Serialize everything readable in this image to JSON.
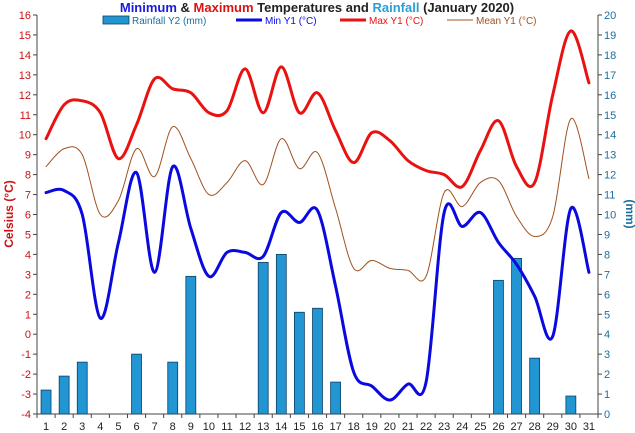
{
  "chart_data": {
    "type": "bar+line",
    "title_parts": [
      {
        "text": "Minimum",
        "color": "#1a1adc"
      },
      {
        "text": " & ",
        "color": "#222222"
      },
      {
        "text": "Maximum",
        "color": "#dd1111"
      },
      {
        "text": " Temperatures and ",
        "color": "#222222"
      },
      {
        "text": "Rainfall",
        "color": "#2a9fd6"
      },
      {
        "text": " (January 2020)",
        "color": "#222222"
      }
    ],
    "ylabel_left": "Celsius (°C)",
    "ylabel_right": "(mm)",
    "ylim_left": [
      -4,
      16
    ],
    "ylim_right": [
      0,
      20
    ],
    "x": [
      1,
      2,
      3,
      4,
      5,
      6,
      7,
      8,
      9,
      10,
      11,
      12,
      13,
      14,
      15,
      16,
      17,
      18,
      19,
      20,
      21,
      22,
      23,
      24,
      25,
      26,
      27,
      28,
      29,
      30,
      31
    ],
    "series": [
      {
        "name": "Rainfall Y2 (mm)",
        "kind": "bar",
        "axis": "right",
        "color": "#2196d3",
        "values": [
          1.2,
          1.9,
          2.6,
          0,
          0,
          3.0,
          0,
          2.6,
          6.9,
          0,
          0,
          0,
          7.6,
          8.0,
          5.1,
          5.3,
          1.6,
          0,
          0,
          0,
          0,
          0,
          0,
          0,
          0,
          6.7,
          7.8,
          2.8,
          0,
          0.9,
          0
        ]
      },
      {
        "name": "Min Y1 (°C)",
        "kind": "line",
        "axis": "left",
        "color": "#0a0ae0",
        "values": [
          7.1,
          7.2,
          6.0,
          0.8,
          4.6,
          8.1,
          3.1,
          8.4,
          5.3,
          2.9,
          4.1,
          4.1,
          3.9,
          6.1,
          5.6,
          6.2,
          2.4,
          -1.9,
          -2.6,
          -3.3,
          -2.5,
          -2.4,
          6.1,
          5.4,
          6.1,
          4.6,
          3.5,
          1.9,
          -0.1,
          6.3,
          3.1
        ]
      },
      {
        "name": "Max Y1 (°C)",
        "kind": "line",
        "axis": "left",
        "color": "#ea1111",
        "values": [
          9.8,
          11.5,
          11.7,
          11.1,
          8.8,
          10.5,
          12.8,
          12.3,
          12.1,
          11.1,
          11.2,
          13.3,
          11.1,
          13.4,
          11.1,
          12.1,
          10.2,
          8.6,
          10.1,
          9.7,
          8.7,
          8.2,
          8.0,
          7.4,
          9.2,
          10.7,
          8.4,
          7.6,
          12.0,
          15.2,
          12.6
        ]
      },
      {
        "name": "Mean Y1 (°C)",
        "kind": "line",
        "axis": "left",
        "color": "#a0501e",
        "values": [
          8.4,
          9.3,
          9.0,
          6.0,
          6.7,
          9.3,
          7.9,
          10.4,
          8.8,
          7.0,
          7.6,
          8.7,
          7.5,
          9.8,
          8.3,
          9.1,
          6.3,
          3.3,
          3.7,
          3.3,
          3.2,
          2.9,
          7.1,
          6.4,
          7.6,
          7.7,
          5.9,
          4.9,
          5.9,
          10.8,
          7.8
        ]
      }
    ],
    "legend_position": "top",
    "grid": false
  }
}
